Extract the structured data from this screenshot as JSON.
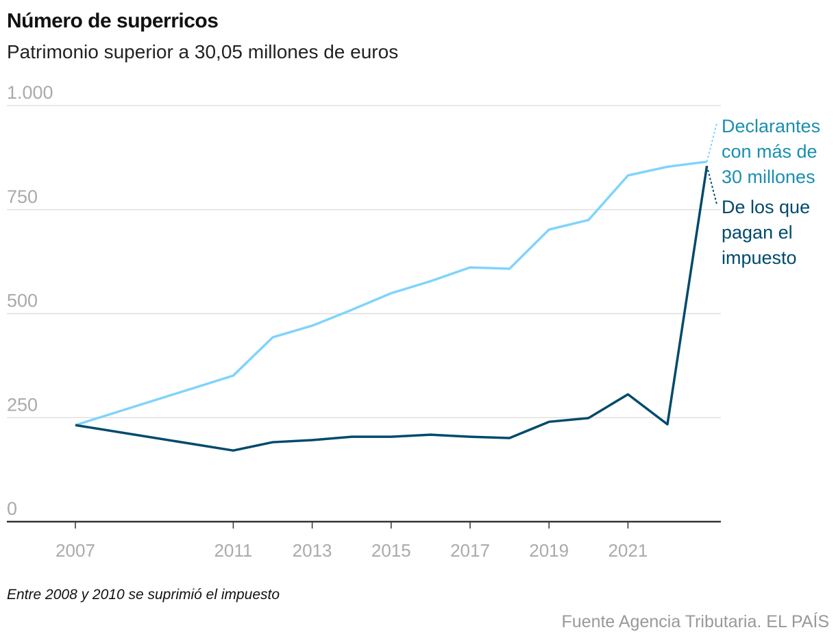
{
  "title": "Número de superricos",
  "subtitle": "Patrimonio superior a 30,05 millones de euros",
  "note": "Entre 2008 y 2010 se suprimió el impuesto",
  "source": "Fuente Agencia Tributaria. EL PAÍS",
  "chart_data": {
    "type": "line",
    "title": "Número de superricos",
    "subtitle": "Patrimonio superior a 30,05 millones de euros",
    "x": [
      2007,
      2011,
      2012,
      2013,
      2014,
      2015,
      2016,
      2017,
      2018,
      2019,
      2020,
      2021,
      2022,
      2023
    ],
    "xlim": [
      2007,
      2023.4
    ],
    "ylim": [
      0,
      1000
    ],
    "yticks": [
      0,
      250,
      500,
      750,
      1000
    ],
    "ytick_labels": [
      "0",
      "250",
      "500",
      "750",
      "1.000"
    ],
    "xticks": [
      2007,
      2011,
      2013,
      2015,
      2017,
      2019,
      2021
    ],
    "xtick_labels": [
      "2007",
      "2011",
      "2013",
      "2015",
      "2017",
      "2019",
      "2021"
    ],
    "grid": true,
    "legend": "direct labels right",
    "series": [
      {
        "name": "Declarantes con más de 30 millones",
        "label_lines": [
          "Declarantes",
          "con más de",
          "30 millones"
        ],
        "color": "#7fd4fc",
        "label_color": "#1a8fb0",
        "values": [
          232,
          351,
          443,
          471,
          509,
          549,
          578,
          611,
          608,
          702,
          725,
          832,
          853,
          865
        ]
      },
      {
        "name": "De los que pagan el impuesto",
        "label_lines": [
          "De los que",
          "pagan el",
          "impuesto"
        ],
        "color": "#004a6b",
        "label_color": "#004a6b",
        "values": [
          232,
          171,
          191,
          196,
          204,
          204,
          209,
          204,
          201,
          240,
          249,
          306,
          234,
          855
        ]
      }
    ]
  }
}
